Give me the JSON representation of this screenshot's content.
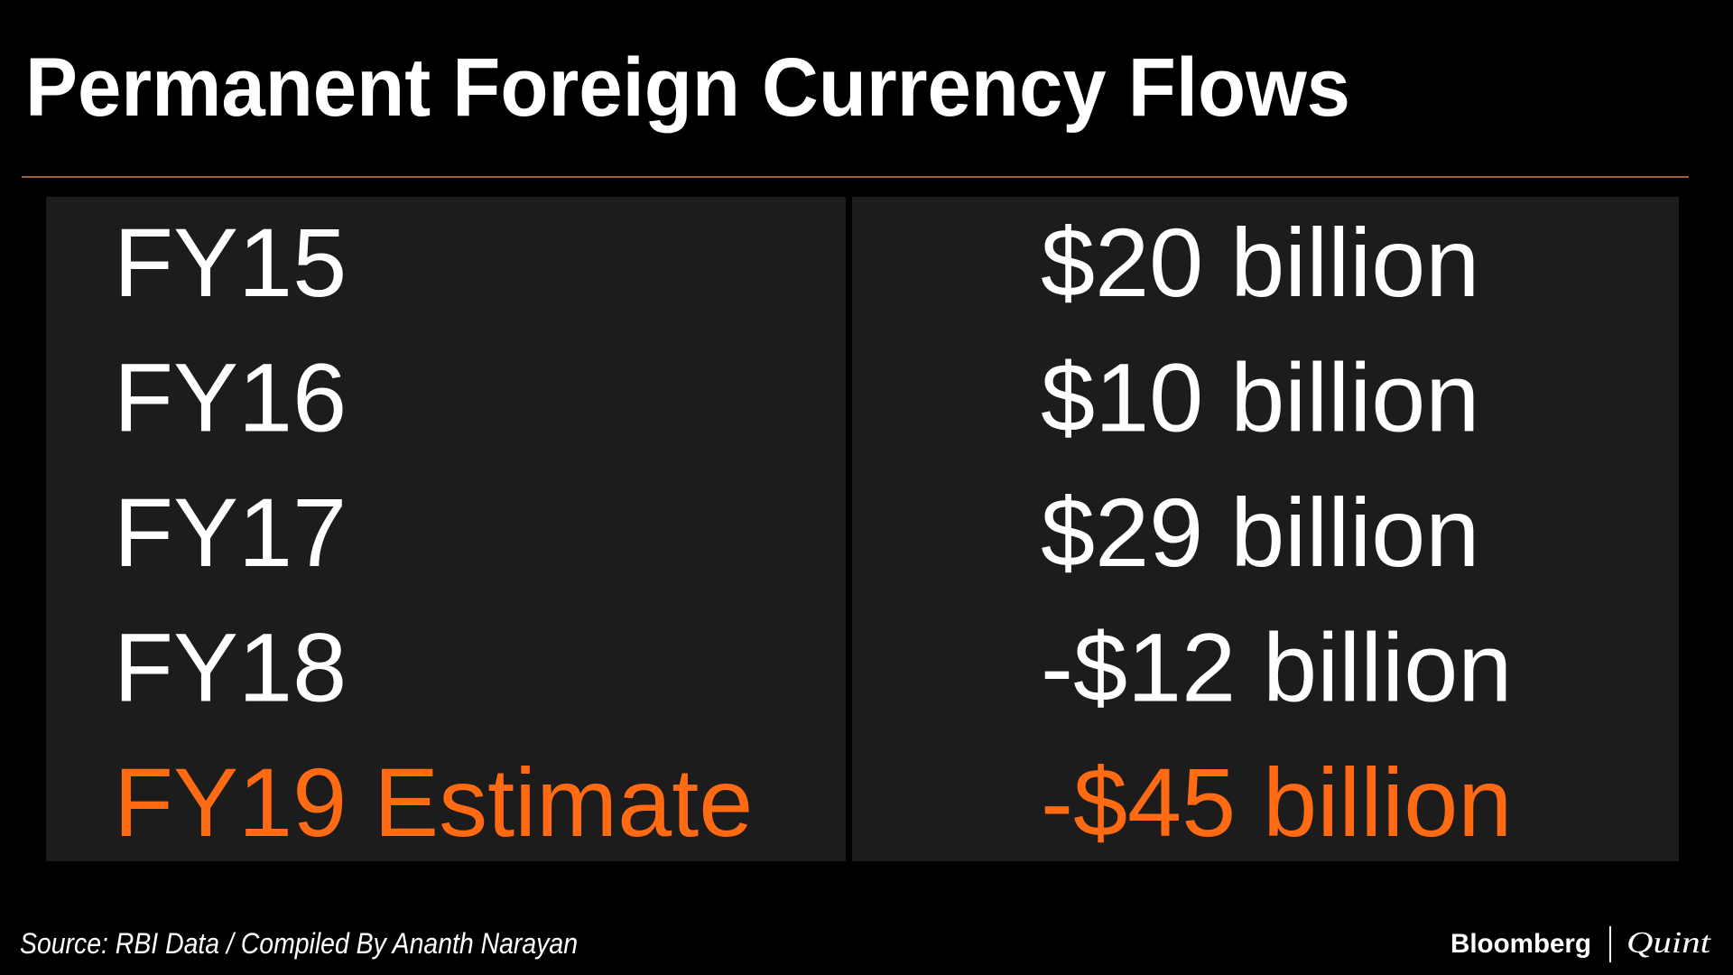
{
  "header": {
    "title": "Permanent Foreign Currency Flows"
  },
  "table": {
    "rows": [
      [
        "FY15",
        "$20 billion"
      ],
      [
        "FY16",
        "$10 billion"
      ],
      [
        "FY17",
        "$29 billion"
      ],
      [
        "FY18",
        "-$12 billion"
      ],
      [
        "FY19 Estimate",
        "-$45 billion"
      ]
    ]
  },
  "footer": {
    "source": "Source: RBI Data / Compiled By Ananth Narayan",
    "brand": "Bloomberg",
    "brand_suffix": "Quint"
  }
}
